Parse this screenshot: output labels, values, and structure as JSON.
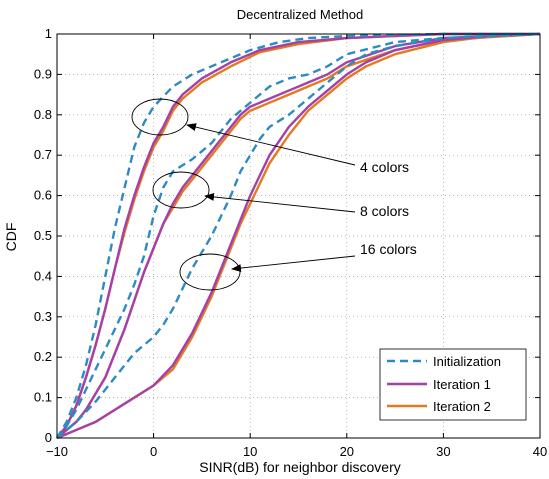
{
  "chart_data": {
    "type": "line",
    "title": "Decentralized Method",
    "xlabel": "SINR(dB) for neighbor discovery",
    "ylabel": "CDF",
    "xlim": [
      -10,
      40
    ],
    "ylim": [
      0,
      1
    ],
    "xticks": [
      -10,
      0,
      10,
      20,
      30,
      40
    ],
    "xtick_labels": [
      "−10",
      "0",
      "10",
      "20",
      "30",
      "40"
    ],
    "yticks": [
      0,
      0.1,
      0.2,
      0.3,
      0.4,
      0.5,
      0.6,
      0.7,
      0.8,
      0.9,
      1
    ],
    "ytick_labels": [
      "0",
      "0.1",
      "0.2",
      "0.3",
      "0.4",
      "0.5",
      "0.6",
      "0.7",
      "0.8",
      "0.9",
      "1"
    ],
    "grid": true,
    "legend_position": "bottom-right",
    "colors": {
      "initialization": "#2e8bc0",
      "iteration1": "#a63fa8",
      "iteration2": "#e37a1f"
    },
    "legend": [
      {
        "name": "Initialization",
        "style": "dashed",
        "color": "#2e8bc0"
      },
      {
        "name": "Iteration 1",
        "style": "solid",
        "color": "#a63fa8"
      },
      {
        "name": "Iteration 2",
        "style": "solid",
        "color": "#e37a1f"
      }
    ],
    "annotations": [
      "4 colors",
      "8 colors",
      "16 colors"
    ],
    "series": [
      {
        "group": "4 colors",
        "name": "Initialization",
        "style": "dashed",
        "points": [
          [
            -10,
            0
          ],
          [
            -9,
            0.04
          ],
          [
            -8,
            0.1
          ],
          [
            -7,
            0.18
          ],
          [
            -6,
            0.28
          ],
          [
            -5,
            0.4
          ],
          [
            -4,
            0.52
          ],
          [
            -3,
            0.62
          ],
          [
            -2,
            0.72
          ],
          [
            -1,
            0.78
          ],
          [
            0,
            0.82
          ],
          [
            2,
            0.87
          ],
          [
            4,
            0.9
          ],
          [
            7,
            0.93
          ],
          [
            10,
            0.96
          ],
          [
            13,
            0.98
          ],
          [
            16,
            0.99
          ],
          [
            20,
            0.995
          ],
          [
            30,
            1
          ],
          [
            40,
            1
          ]
        ]
      },
      {
        "group": "4 colors",
        "name": "Iteration 1",
        "style": "solid",
        "points": [
          [
            -10,
            0
          ],
          [
            -9,
            0.03
          ],
          [
            -8,
            0.08
          ],
          [
            -7,
            0.15
          ],
          [
            -6,
            0.23
          ],
          [
            -5,
            0.32
          ],
          [
            -4,
            0.42
          ],
          [
            -3,
            0.52
          ],
          [
            -2,
            0.6
          ],
          [
            -1,
            0.67
          ],
          [
            0,
            0.73
          ],
          [
            1,
            0.77
          ],
          [
            2,
            0.82
          ],
          [
            3,
            0.85
          ],
          [
            5,
            0.89
          ],
          [
            8,
            0.93
          ],
          [
            11,
            0.96
          ],
          [
            15,
            0.98
          ],
          [
            20,
            0.99
          ],
          [
            30,
            1
          ],
          [
            40,
            1
          ]
        ]
      },
      {
        "group": "4 colors",
        "name": "Iteration 2",
        "style": "solid",
        "points": [
          [
            -10,
            0
          ],
          [
            -9,
            0.03
          ],
          [
            -8,
            0.08
          ],
          [
            -7,
            0.15
          ],
          [
            -6,
            0.23
          ],
          [
            -5,
            0.32
          ],
          [
            -4,
            0.42
          ],
          [
            -3,
            0.51
          ],
          [
            -2,
            0.59
          ],
          [
            -1,
            0.66
          ],
          [
            0,
            0.72
          ],
          [
            1,
            0.76
          ],
          [
            2,
            0.81
          ],
          [
            3,
            0.84
          ],
          [
            5,
            0.88
          ],
          [
            8,
            0.92
          ],
          [
            11,
            0.955
          ],
          [
            15,
            0.975
          ],
          [
            20,
            0.99
          ],
          [
            30,
            1
          ],
          [
            40,
            1
          ]
        ]
      },
      {
        "group": "8 colors",
        "name": "Initialization",
        "style": "dashed",
        "points": [
          [
            -10,
            0
          ],
          [
            -9,
            0.03
          ],
          [
            -8,
            0.07
          ],
          [
            -7,
            0.12
          ],
          [
            -6,
            0.17
          ],
          [
            -5,
            0.22
          ],
          [
            -4,
            0.27
          ],
          [
            -3,
            0.32
          ],
          [
            -2,
            0.38
          ],
          [
            -1,
            0.45
          ],
          [
            0,
            0.55
          ],
          [
            1,
            0.62
          ],
          [
            2,
            0.66
          ],
          [
            4,
            0.69
          ],
          [
            6,
            0.73
          ],
          [
            8,
            0.79
          ],
          [
            10,
            0.83
          ],
          [
            12,
            0.87
          ],
          [
            14,
            0.89
          ],
          [
            16,
            0.9
          ],
          [
            18,
            0.92
          ],
          [
            20,
            0.95
          ],
          [
            25,
            0.98
          ],
          [
            30,
            0.99
          ],
          [
            40,
            1
          ]
        ]
      },
      {
        "group": "8 colors",
        "name": "Iteration 1",
        "style": "solid",
        "points": [
          [
            -10,
            0
          ],
          [
            -9,
            0.02
          ],
          [
            -8,
            0.04
          ],
          [
            -7,
            0.07
          ],
          [
            -6,
            0.11
          ],
          [
            -5,
            0.15
          ],
          [
            -4,
            0.21
          ],
          [
            -3,
            0.27
          ],
          [
            -2,
            0.34
          ],
          [
            -1,
            0.41
          ],
          [
            0,
            0.47
          ],
          [
            1,
            0.53
          ],
          [
            2,
            0.58
          ],
          [
            3,
            0.62
          ],
          [
            4,
            0.65
          ],
          [
            5,
            0.68
          ],
          [
            6,
            0.71
          ],
          [
            7,
            0.74
          ],
          [
            8,
            0.77
          ],
          [
            9,
            0.8
          ],
          [
            10,
            0.82
          ],
          [
            12,
            0.84
          ],
          [
            14,
            0.86
          ],
          [
            16,
            0.88
          ],
          [
            18,
            0.9
          ],
          [
            20,
            0.93
          ],
          [
            25,
            0.97
          ],
          [
            30,
            0.99
          ],
          [
            40,
            1
          ]
        ]
      },
      {
        "group": "8 colors",
        "name": "Iteration 2",
        "style": "solid",
        "points": [
          [
            -10,
            0
          ],
          [
            -9,
            0.02
          ],
          [
            -8,
            0.04
          ],
          [
            -7,
            0.07
          ],
          [
            -6,
            0.11
          ],
          [
            -5,
            0.15
          ],
          [
            -4,
            0.21
          ],
          [
            -3,
            0.27
          ],
          [
            -2,
            0.34
          ],
          [
            -1,
            0.41
          ],
          [
            0,
            0.47
          ],
          [
            1,
            0.53
          ],
          [
            2,
            0.57
          ],
          [
            3,
            0.61
          ],
          [
            4,
            0.64
          ],
          [
            5,
            0.67
          ],
          [
            6,
            0.7
          ],
          [
            7,
            0.73
          ],
          [
            8,
            0.76
          ],
          [
            9,
            0.79
          ],
          [
            10,
            0.81
          ],
          [
            12,
            0.83
          ],
          [
            14,
            0.85
          ],
          [
            16,
            0.87
          ],
          [
            18,
            0.89
          ],
          [
            20,
            0.92
          ],
          [
            25,
            0.96
          ],
          [
            30,
            0.985
          ],
          [
            40,
            1
          ]
        ]
      },
      {
        "group": "16 colors",
        "name": "Initialization",
        "style": "dashed",
        "points": [
          [
            -10,
            0
          ],
          [
            -8,
            0.04
          ],
          [
            -6,
            0.09
          ],
          [
            -4,
            0.15
          ],
          [
            -2,
            0.21
          ],
          [
            0,
            0.25
          ],
          [
            1,
            0.28
          ],
          [
            2,
            0.32
          ],
          [
            3,
            0.37
          ],
          [
            4,
            0.42
          ],
          [
            5,
            0.46
          ],
          [
            6,
            0.5
          ],
          [
            7,
            0.55
          ],
          [
            8,
            0.6
          ],
          [
            9,
            0.66
          ],
          [
            10,
            0.7
          ],
          [
            11,
            0.74
          ],
          [
            12,
            0.77
          ],
          [
            14,
            0.8
          ],
          [
            16,
            0.84
          ],
          [
            18,
            0.88
          ],
          [
            20,
            0.92
          ],
          [
            22,
            0.95
          ],
          [
            25,
            0.97
          ],
          [
            30,
            0.99
          ],
          [
            40,
            1
          ]
        ]
      },
      {
        "group": "16 colors",
        "name": "Iteration 1",
        "style": "solid",
        "points": [
          [
            -10,
            0
          ],
          [
            -8,
            0.02
          ],
          [
            -6,
            0.04
          ],
          [
            -4,
            0.07
          ],
          [
            -2,
            0.1
          ],
          [
            0,
            0.13
          ],
          [
            2,
            0.18
          ],
          [
            3,
            0.22
          ],
          [
            4,
            0.26
          ],
          [
            5,
            0.31
          ],
          [
            6,
            0.36
          ],
          [
            7,
            0.42
          ],
          [
            8,
            0.48
          ],
          [
            9,
            0.54
          ],
          [
            10,
            0.6
          ],
          [
            11,
            0.65
          ],
          [
            12,
            0.7
          ],
          [
            14,
            0.77
          ],
          [
            16,
            0.82
          ],
          [
            18,
            0.86
          ],
          [
            20,
            0.9
          ],
          [
            22,
            0.93
          ],
          [
            25,
            0.96
          ],
          [
            30,
            0.985
          ],
          [
            35,
            0.995
          ],
          [
            40,
            1
          ]
        ]
      },
      {
        "group": "16 colors",
        "name": "Iteration 2",
        "style": "solid",
        "points": [
          [
            -10,
            0
          ],
          [
            -8,
            0.02
          ],
          [
            -6,
            0.04
          ],
          [
            -4,
            0.07
          ],
          [
            -2,
            0.1
          ],
          [
            0,
            0.13
          ],
          [
            2,
            0.17
          ],
          [
            3,
            0.21
          ],
          [
            4,
            0.25
          ],
          [
            5,
            0.3
          ],
          [
            6,
            0.35
          ],
          [
            7,
            0.41
          ],
          [
            8,
            0.47
          ],
          [
            9,
            0.53
          ],
          [
            10,
            0.58
          ],
          [
            11,
            0.63
          ],
          [
            12,
            0.68
          ],
          [
            14,
            0.75
          ],
          [
            16,
            0.81
          ],
          [
            18,
            0.85
          ],
          [
            20,
            0.89
          ],
          [
            22,
            0.92
          ],
          [
            25,
            0.95
          ],
          [
            30,
            0.98
          ],
          [
            35,
            0.995
          ],
          [
            40,
            1
          ]
        ]
      }
    ]
  }
}
